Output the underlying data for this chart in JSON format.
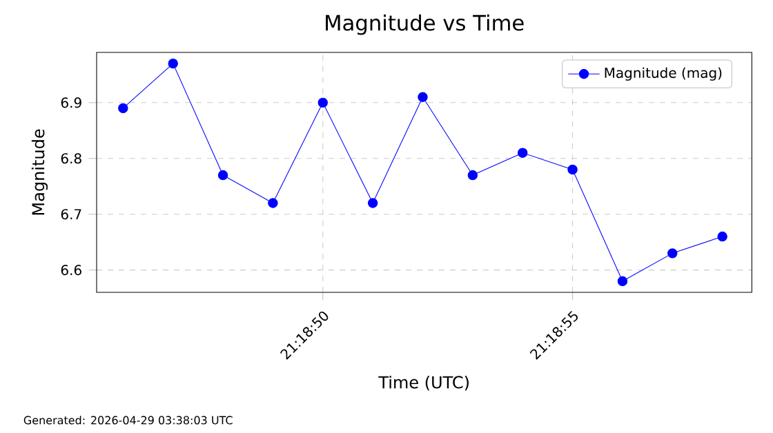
{
  "chart_data": {
    "type": "line",
    "title": "Magnitude vs Time",
    "xlabel": "Time (UTC)",
    "ylabel": "Magnitude",
    "x": [
      21.3127778,
      21.3130556,
      21.3133333,
      21.3136111,
      21.3138889,
      21.3141667,
      21.3144444,
      21.3147222,
      21.315,
      21.3152778,
      21.3155556,
      21.3158333,
      21.3161111
    ],
    "series": [
      {
        "name": "Magnitude (mag)",
        "color": "#0000ff",
        "values": [
          6.89,
          6.97,
          6.77,
          6.72,
          6.9,
          6.72,
          6.91,
          6.77,
          6.81,
          6.78,
          6.58,
          6.63,
          6.66
        ]
      }
    ],
    "xlim": [
      21.3126306,
      21.316275
    ],
    "ylim": [
      6.56,
      6.99
    ],
    "xticks": [
      {
        "value": 21.3138889,
        "label": "21:18:50"
      },
      {
        "value": 21.3152778,
        "label": "21:18:55"
      }
    ],
    "yticks": [
      6.6,
      6.7,
      6.8,
      6.9
    ],
    "grid": true,
    "legend": "top right",
    "marker": "circle",
    "line_style": "solid",
    "annotations": [
      "Generated: 2026-04-29 03:38:03 UTC"
    ]
  }
}
